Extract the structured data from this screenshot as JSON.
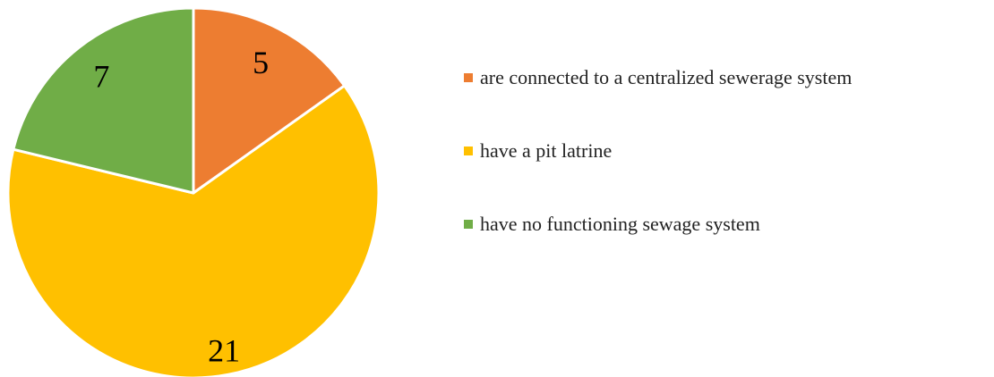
{
  "chart_data": {
    "type": "pie",
    "categories": [
      "are connected to a centralized sewerage system",
      "have a pit latrine",
      "have no functioning sewage system"
    ],
    "values": [
      5,
      21,
      7
    ],
    "data_labels": [
      "5",
      "21",
      "7"
    ],
    "colors": [
      "#ED7D31",
      "#FFC000",
      "#70AD47"
    ],
    "start_angle_deg": 0,
    "direction": "clockwise",
    "legend_position": "right",
    "title": ""
  }
}
